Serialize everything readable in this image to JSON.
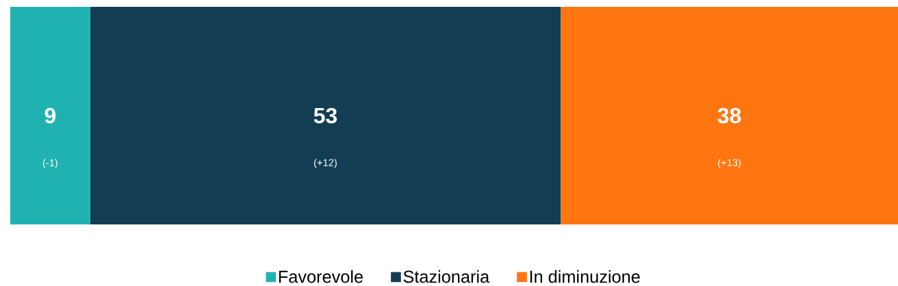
{
  "chart_data": {
    "type": "bar",
    "orientation": "horizontal",
    "stacked": true,
    "categories": [
      null
    ],
    "series": [
      {
        "name": "Favorevole",
        "color": "#20b2b0",
        "values": [
          9
        ]
      },
      {
        "name": "Stazionaria",
        "color": "#123d52",
        "values": [
          53
        ]
      },
      {
        "name": "In diminuzione",
        "color": "#ff7510",
        "values": [
          38
        ]
      }
    ],
    "tick_labels": false,
    "data_labels": true,
    "legend": "bottom",
    "annotations": [
      "(-1)",
      "(+12)",
      "(+13)"
    ]
  }
}
